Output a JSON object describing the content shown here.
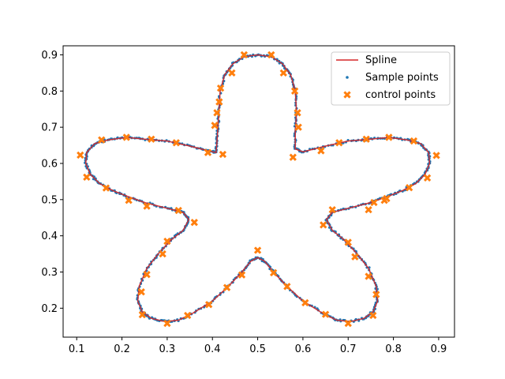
{
  "chart_data": {
    "type": "scatter",
    "title": "",
    "xlabel": "",
    "ylabel": "",
    "xlim": [
      0.07,
      0.935
    ],
    "ylim": [
      0.12,
      0.925
    ],
    "xticks": [
      "0.1",
      "0.2",
      "0.3",
      "0.4",
      "0.5",
      "0.6",
      "0.7",
      "0.8",
      "0.9"
    ],
    "yticks": [
      "0.2",
      "0.3",
      "0.4",
      "0.5",
      "0.6",
      "0.7",
      "0.8",
      "0.9"
    ],
    "grid": false,
    "legend_position": "upper right",
    "series": [
      {
        "name": "Spline",
        "kind": "line",
        "color": "#d62728",
        "points": [
          [
            0.5,
            0.9
          ],
          [
            0.53,
            0.895
          ],
          [
            0.555,
            0.875
          ],
          [
            0.573,
            0.845
          ],
          [
            0.583,
            0.8
          ],
          [
            0.586,
            0.74
          ],
          [
            0.583,
            0.69
          ],
          [
            0.583,
            0.64
          ],
          [
            0.6,
            0.632
          ],
          [
            0.65,
            0.648
          ],
          [
            0.7,
            0.662
          ],
          [
            0.75,
            0.667
          ],
          [
            0.79,
            0.672
          ],
          [
            0.83,
            0.665
          ],
          [
            0.86,
            0.655
          ],
          [
            0.878,
            0.63
          ],
          [
            0.88,
            0.6
          ],
          [
            0.87,
            0.57
          ],
          [
            0.85,
            0.545
          ],
          [
            0.82,
            0.525
          ],
          [
            0.79,
            0.51
          ],
          [
            0.75,
            0.492
          ],
          [
            0.7,
            0.476
          ],
          [
            0.665,
            0.465
          ],
          [
            0.652,
            0.445
          ],
          [
            0.665,
            0.415
          ],
          [
            0.69,
            0.39
          ],
          [
            0.72,
            0.35
          ],
          [
            0.745,
            0.31
          ],
          [
            0.762,
            0.26
          ],
          [
            0.765,
            0.22
          ],
          [
            0.755,
            0.19
          ],
          [
            0.735,
            0.172
          ],
          [
            0.705,
            0.163
          ],
          [
            0.675,
            0.167
          ],
          [
            0.645,
            0.185
          ],
          [
            0.6,
            0.22
          ],
          [
            0.565,
            0.26
          ],
          [
            0.535,
            0.3
          ],
          [
            0.515,
            0.33
          ],
          [
            0.5,
            0.34
          ],
          [
            0.485,
            0.33
          ],
          [
            0.465,
            0.3
          ],
          [
            0.435,
            0.26
          ],
          [
            0.4,
            0.22
          ],
          [
            0.355,
            0.185
          ],
          [
            0.325,
            0.167
          ],
          [
            0.295,
            0.163
          ],
          [
            0.265,
            0.172
          ],
          [
            0.245,
            0.19
          ],
          [
            0.235,
            0.22
          ],
          [
            0.238,
            0.26
          ],
          [
            0.255,
            0.31
          ],
          [
            0.28,
            0.35
          ],
          [
            0.31,
            0.39
          ],
          [
            0.335,
            0.415
          ],
          [
            0.348,
            0.445
          ],
          [
            0.335,
            0.465
          ],
          [
            0.3,
            0.476
          ],
          [
            0.25,
            0.492
          ],
          [
            0.21,
            0.51
          ],
          [
            0.18,
            0.525
          ],
          [
            0.15,
            0.545
          ],
          [
            0.13,
            0.57
          ],
          [
            0.12,
            0.6
          ],
          [
            0.122,
            0.63
          ],
          [
            0.14,
            0.655
          ],
          [
            0.17,
            0.665
          ],
          [
            0.21,
            0.672
          ],
          [
            0.25,
            0.667
          ],
          [
            0.3,
            0.662
          ],
          [
            0.35,
            0.648
          ],
          [
            0.39,
            0.635
          ],
          [
            0.408,
            0.63
          ],
          [
            0.41,
            0.66
          ],
          [
            0.412,
            0.7
          ],
          [
            0.414,
            0.74
          ],
          [
            0.417,
            0.8
          ],
          [
            0.427,
            0.845
          ],
          [
            0.445,
            0.875
          ],
          [
            0.47,
            0.895
          ],
          [
            0.5,
            0.9
          ]
        ]
      },
      {
        "name": "Sample points",
        "kind": "points",
        "color": "#1f77b4"
      },
      {
        "name": "control points",
        "kind": "markers",
        "color": "#ff7f0e",
        "points": [
          [
            0.47,
            0.9
          ],
          [
            0.53,
            0.9
          ],
          [
            0.443,
            0.85
          ],
          [
            0.557,
            0.85
          ],
          [
            0.418,
            0.808
          ],
          [
            0.582,
            0.8
          ],
          [
            0.415,
            0.77
          ],
          [
            0.41,
            0.74
          ],
          [
            0.588,
            0.74
          ],
          [
            0.405,
            0.705
          ],
          [
            0.59,
            0.7
          ],
          [
            0.423,
            0.625
          ],
          [
            0.578,
            0.617
          ],
          [
            0.39,
            0.63
          ],
          [
            0.64,
            0.635
          ],
          [
            0.32,
            0.657
          ],
          [
            0.68,
            0.657
          ],
          [
            0.265,
            0.667
          ],
          [
            0.74,
            0.667
          ],
          [
            0.21,
            0.672
          ],
          [
            0.79,
            0.672
          ],
          [
            0.155,
            0.665
          ],
          [
            0.845,
            0.662
          ],
          [
            0.108,
            0.623
          ],
          [
            0.895,
            0.622
          ],
          [
            0.122,
            0.562
          ],
          [
            0.875,
            0.56
          ],
          [
            0.165,
            0.532
          ],
          [
            0.835,
            0.533
          ],
          [
            0.215,
            0.498
          ],
          [
            0.785,
            0.503
          ],
          [
            0.78,
            0.498
          ],
          [
            0.255,
            0.482
          ],
          [
            0.757,
            0.492
          ],
          [
            0.325,
            0.47
          ],
          [
            0.665,
            0.472
          ],
          [
            0.745,
            0.472
          ],
          [
            0.36,
            0.437
          ],
          [
            0.645,
            0.43
          ],
          [
            0.3,
            0.385
          ],
          [
            0.7,
            0.382
          ],
          [
            0.29,
            0.35
          ],
          [
            0.715,
            0.342
          ],
          [
            0.5,
            0.36
          ],
          [
            0.255,
            0.293
          ],
          [
            0.465,
            0.292
          ],
          [
            0.535,
            0.298
          ],
          [
            0.745,
            0.288
          ],
          [
            0.432,
            0.257
          ],
          [
            0.565,
            0.26
          ],
          [
            0.243,
            0.245
          ],
          [
            0.762,
            0.238
          ],
          [
            0.392,
            0.21
          ],
          [
            0.605,
            0.215
          ],
          [
            0.245,
            0.182
          ],
          [
            0.345,
            0.18
          ],
          [
            0.65,
            0.183
          ],
          [
            0.755,
            0.18
          ],
          [
            0.3,
            0.158
          ],
          [
            0.7,
            0.158
          ]
        ]
      }
    ]
  }
}
